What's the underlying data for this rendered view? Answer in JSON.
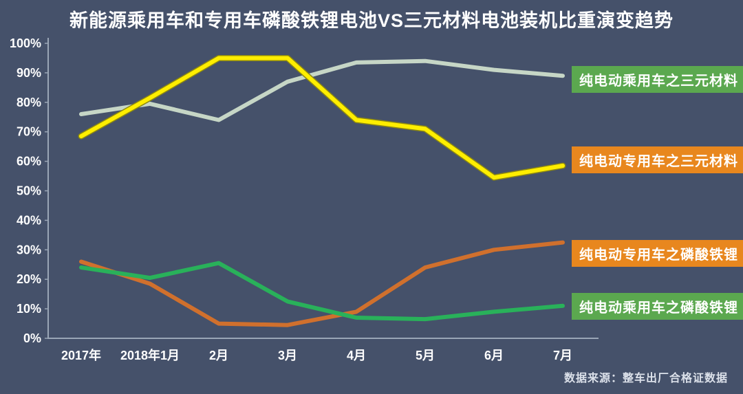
{
  "colors": {
    "background": "#45516a",
    "axis": "#9aa6b6",
    "text": "#ffffff",
    "legend_green": "#5ba84f",
    "legend_orange": "#e8871e"
  },
  "source_note": "数据来源：整车出厂合格证数据",
  "legends": [
    {
      "label": "纯电动乘用车之三元材料",
      "bg": "#5ba84f"
    },
    {
      "label": "纯电动专用车之三元材料",
      "bg": "#e8871e"
    },
    {
      "label": "纯电动专用车之磷酸铁锂",
      "bg": "#e8871e"
    },
    {
      "label": "纯电动乘用车之磷酸铁锂",
      "bg": "#5ba84f"
    }
  ],
  "chart_data": {
    "type": "line",
    "title": "新能源乘用车和专用车磷酸铁锂电池VS三元材料电池装机比重演变趋势",
    "categories": [
      "2017年",
      "2018年1月",
      "2月",
      "3月",
      "4月",
      "5月",
      "6月",
      "7月"
    ],
    "unit": "%",
    "ylim": [
      0,
      100
    ],
    "ytick_step": 10,
    "ytick_labels": [
      "0%",
      "10%",
      "20%",
      "30%",
      "40%",
      "50%",
      "60%",
      "70%",
      "80%",
      "90%",
      "100%"
    ],
    "grid": false,
    "legend_position": "right-of-line-endpoints",
    "series": [
      {
        "name": "纯电动乘用车之三元材料",
        "color": "#c6d6c6",
        "width": 6,
        "values": [
          76,
          79.5,
          74,
          87,
          93.5,
          94,
          91,
          89
        ]
      },
      {
        "name": "纯电动专用车之三元材料",
        "color": "#ffee00",
        "width": 6,
        "underlay": "#8c8812",
        "values": [
          68.5,
          81.5,
          95,
          95,
          74,
          71,
          54.5,
          58.5
        ]
      },
      {
        "name": "纯电动专用车之磷酸铁锂",
        "color": "#d0702d",
        "width": 6,
        "values": [
          26,
          18.5,
          5,
          4.5,
          9,
          24,
          30,
          32.5
        ]
      },
      {
        "name": "纯电动乘用车之磷酸铁锂",
        "color": "#29b15a",
        "width": 6,
        "values": [
          24,
          20.5,
          25.5,
          12.5,
          7,
          6.5,
          9,
          11
        ]
      }
    ]
  }
}
